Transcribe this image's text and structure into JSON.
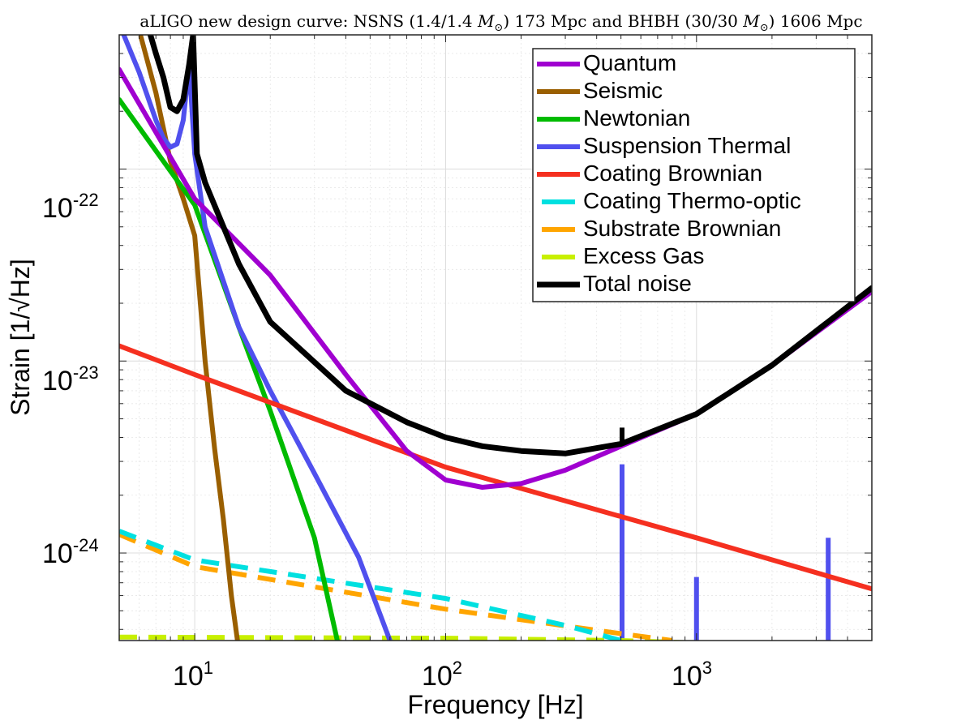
{
  "chart_data": {
    "type": "line",
    "title_parts": {
      "prefix": "aLIGO new design curve: NSNS (1.4/1.4 ",
      "msun": "M",
      "msun_sub": "⊙",
      "middle": ") 173 Mpc and BHBH (30/30 ",
      "suffix": ") 1606 Mpc"
    },
    "xlabel": "Frequency [Hz]",
    "ylabel": "Strain [1/√Hz]",
    "xscale": "log",
    "yscale": "log",
    "xlim": [
      5,
      5000
    ],
    "ylim": [
      3.5e-25,
      5e-22
    ],
    "grid": true,
    "legend_position": "top-right",
    "x_ticks": [
      {
        "value": 10,
        "base": "10",
        "exp": "1"
      },
      {
        "value": 100,
        "base": "10",
        "exp": "2"
      },
      {
        "value": 1000,
        "base": "10",
        "exp": "3"
      }
    ],
    "y_ticks": [
      {
        "value": 1e-22,
        "base": "10",
        "exp": "-22"
      },
      {
        "value": 1e-23,
        "base": "10",
        "exp": "-23"
      },
      {
        "value": 1e-24,
        "base": "10",
        "exp": "-24"
      }
    ],
    "series": [
      {
        "name": "Quantum",
        "color": "#a000d0",
        "width": 6,
        "dashed": false,
        "x": [
          5,
          10,
          20,
          40,
          70,
          100,
          140,
          200,
          300,
          500,
          1000,
          2000,
          5000
        ],
        "y": [
          3.3e-22,
          7e-23,
          2.8e-23,
          8.5e-24,
          3.4e-24,
          2.4e-24,
          2.2e-24,
          2.3e-24,
          2.7e-24,
          3.6e-24,
          5.3e-24,
          9.5e-24,
          2.3e-23
        ]
      },
      {
        "name": "Seismic",
        "color": "#9a5f00",
        "width": 6,
        "dashed": false,
        "x": [
          6.1,
          7,
          8,
          9,
          10,
          11,
          12,
          13,
          14,
          14.8
        ],
        "y": [
          4.9e-22,
          2.5e-22,
          1.1e-22,
          7e-23,
          4.5e-23,
          1e-23,
          3.5e-24,
          1.5e-24,
          6e-25,
          3.5e-25
        ]
      },
      {
        "name": "Newtonian",
        "color": "#00bb00",
        "width": 6,
        "dashed": false,
        "x": [
          5,
          10,
          15,
          20,
          30,
          37
        ],
        "y": [
          2.3e-22,
          6.5e-23,
          1.5e-23,
          5.5e-24,
          1.2e-24,
          3.5e-25
        ]
      },
      {
        "name": "Suspension Thermal",
        "color": "#5050ee",
        "width": 6,
        "dashed": false,
        "x": [
          5,
          6,
          7,
          7.5,
          8,
          8.5,
          9,
          9.5,
          10,
          11,
          15,
          20,
          30,
          45,
          60
        ],
        "y": [
          5.7e-22,
          3.2e-22,
          1.8e-22,
          1.45e-22,
          1.3e-22,
          1.35e-22,
          1.8e-22,
          3.5e-22,
          1.2e-22,
          5e-23,
          1.5e-23,
          7e-24,
          2.6e-24,
          9.5e-25,
          3.5e-25
        ]
      },
      {
        "name": "Coating Brownian",
        "color": "#f53020",
        "width": 6,
        "dashed": false,
        "x": [
          5,
          10,
          100,
          1000,
          5000
        ],
        "y": [
          1.2e-23,
          8.5e-24,
          2.8e-24,
          1.2e-24,
          6.5e-25
        ]
      },
      {
        "name": "Coating Thermo-optic",
        "color": "#00e0e0",
        "width": 6,
        "dashed": true,
        "x": [
          5,
          10,
          100,
          300,
          500
        ],
        "y": [
          1.3e-24,
          9.2e-25,
          5.8e-25,
          4.2e-25,
          3.5e-25
        ]
      },
      {
        "name": "Substrate Brownian",
        "color": "#ffa500",
        "width": 6,
        "dashed": true,
        "x": [
          5,
          10,
          100,
          500,
          800
        ],
        "y": [
          1.25e-24,
          8.5e-25,
          5.1e-25,
          3.8e-25,
          3.5e-25
        ]
      },
      {
        "name": "Excess Gas",
        "color": "#c8f000",
        "width": 6,
        "dashed": true,
        "x": [
          5,
          100,
          500,
          1000,
          1900
        ],
        "y": [
          3.65e-25,
          3.6e-25,
          3.5e-25,
          3.4e-25,
          3.3e-25
        ]
      },
      {
        "name": "Total noise",
        "color": "#000000",
        "width": 7,
        "dashed": false,
        "x": [
          6.6,
          7,
          7.5,
          8,
          8.5,
          9,
          9.5,
          9.85,
          10.2,
          11,
          15,
          20,
          40,
          70,
          100,
          140,
          200,
          300,
          500,
          1000,
          2000,
          5000
        ],
        "y": [
          5.2e-22,
          4e-22,
          3e-22,
          2.1e-22,
          2e-22,
          2.3e-22,
          3.5e-22,
          5e-22,
          1.2e-22,
          8.5e-23,
          3.2e-23,
          1.6e-23,
          7e-24,
          4.8e-24,
          4e-24,
          3.6e-24,
          3.4e-24,
          3.3e-24,
          3.7e-24,
          5.3e-24,
          9.5e-24,
          2.4e-23
        ]
      }
    ],
    "spikes": [
      {
        "color": "#5050ee",
        "x": 505,
        "y_top": 2.9e-24
      },
      {
        "color": "#5050ee",
        "x": 1000,
        "y_top": 7.5e-25
      },
      {
        "color": "#5050ee",
        "x": 3350,
        "y_top": 1.2e-24
      },
      {
        "color": "#000000",
        "x": 505,
        "y_top": 4.5e-24,
        "y_bottom": 3.6e-24
      }
    ]
  }
}
